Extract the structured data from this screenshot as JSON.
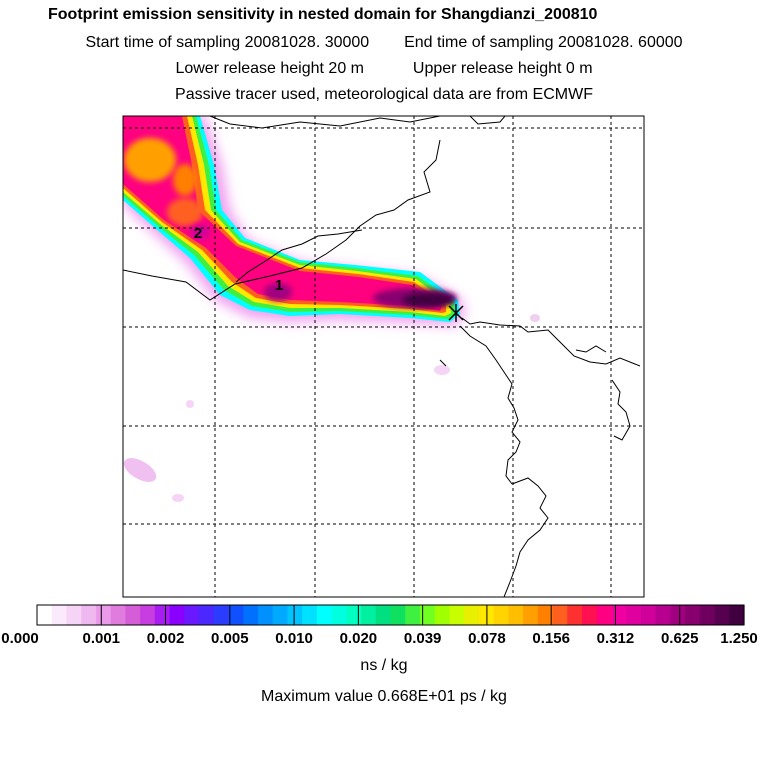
{
  "header": {
    "title": "Footprint emission sensitivity in nested domain for Shangdianzi_200810",
    "start_label": "Start time of sampling 20081028. 30000",
    "end_label": "End time of sampling 20081028. 60000",
    "lower_label": "Lower release height   20 m",
    "upper_label": "Upper release height    0 m",
    "tracer_note": "Passive tracer used, meteorological data are from ECMWF"
  },
  "map": {
    "markers": [
      {
        "label": "1"
      },
      {
        "label": "2"
      }
    ]
  },
  "chart_data": {
    "type": "heatmap",
    "title": "Footprint emission sensitivity in nested domain for Shangdianzi_200810",
    "colorbar": {
      "ticks": [
        "0.000",
        "0.001",
        "0.002",
        "0.005",
        "0.010",
        "0.020",
        "0.039",
        "0.078",
        "0.156",
        "0.312",
        "0.625",
        "1.250"
      ],
      "units": "ns / kg",
      "colors": [
        "#ffffff",
        "#fbeafb",
        "#f6d4f6",
        "#f0b8f0",
        "#e99ae9",
        "#e07ce0",
        "#d65dd8",
        "#c83de0",
        "#a71cf0",
        "#8a00ff",
        "#6a18ff",
        "#4a28ff",
        "#2b3cff",
        "#1050ff",
        "#0070ff",
        "#0090ff",
        "#00aaff",
        "#00c4ff",
        "#00e0ff",
        "#00ffff",
        "#00ffe0",
        "#00ffc0",
        "#00f0a0",
        "#00e080",
        "#10e060",
        "#40f040",
        "#70ff20",
        "#a0ff00",
        "#c8ff00",
        "#e8f000",
        "#ffe800",
        "#ffd400",
        "#ffbe00",
        "#ffa000",
        "#ff8000",
        "#ff6020",
        "#ff3030",
        "#ff1050",
        "#ff0080",
        "#f000a0",
        "#e000a0",
        "#d0009a",
        "#b80090",
        "#a00080",
        "#880070",
        "#700060",
        "#580050",
        "#400040"
      ]
    },
    "max_value": "Maximum value  0.668E+01 ps / kg"
  }
}
